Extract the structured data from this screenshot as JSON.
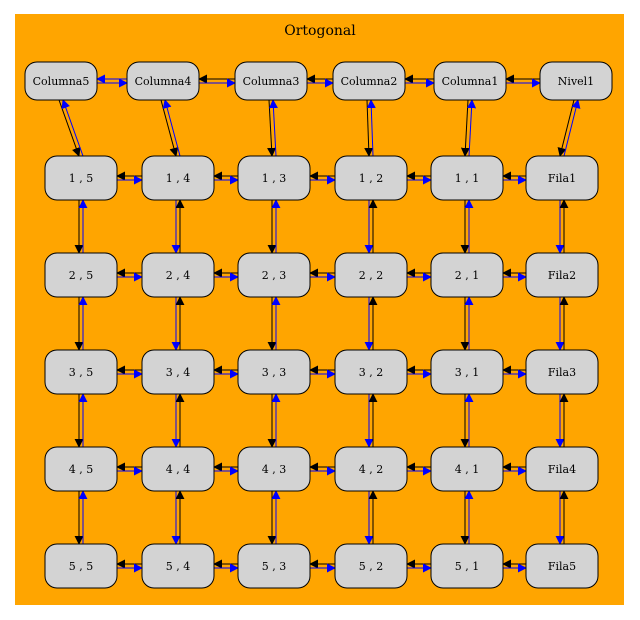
{
  "cluster": {
    "title": "Ortogonal",
    "fill": "#ffa500"
  },
  "colors": {
    "node_fill": "#d3d3d3",
    "node_stroke": "#000000",
    "edge_black": "#000000",
    "edge_blue": "#0000ff"
  },
  "header_row": [
    "Columna5",
    "Columna4",
    "Columna3",
    "Columna2",
    "Columna1",
    "Nivel1"
  ],
  "grid_rows": [
    [
      "1 , 5",
      "1 , 4",
      "1 , 3",
      "1 , 2",
      "1 , 1",
      "Fila1"
    ],
    [
      "2 , 5",
      "2 , 4",
      "2 , 3",
      "2 , 2",
      "2 , 1",
      "Fila2"
    ],
    [
      "3 , 5",
      "3 , 4",
      "3 , 3",
      "3 , 2",
      "3 , 1",
      "Fila3"
    ],
    [
      "4 , 5",
      "4 , 4",
      "4 , 3",
      "4 , 2",
      "4 , 1",
      "Fila4"
    ],
    [
      "5 , 5",
      "5 , 4",
      "5 , 3",
      "5 , 2",
      "5 , 1",
      "Fila5"
    ]
  ]
}
